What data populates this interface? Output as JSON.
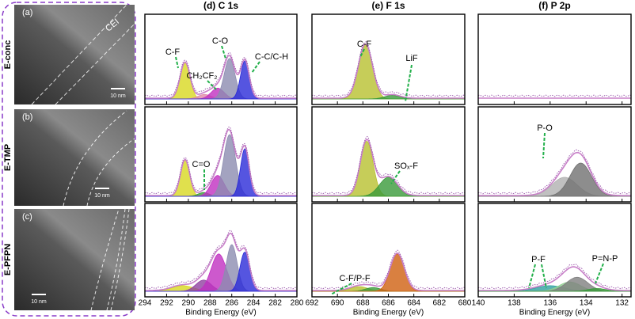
{
  "samples": [
    {
      "tag": "(a)",
      "name": "E-conc",
      "scale": "10 nm",
      "note": "CEI"
    },
    {
      "tag": "(b)",
      "name": "E-TMP",
      "scale": "10 nm"
    },
    {
      "tag": "(c)",
      "name": "E-PFPN",
      "scale": "10 nm"
    }
  ],
  "chart_data": [
    {
      "type": "line",
      "title": "(d) C 1s",
      "xlabel": "Binding Energy (eV)",
      "xlim": [
        294,
        280
      ],
      "xticks": [
        294,
        292,
        290,
        288,
        286,
        284,
        282,
        280
      ],
      "panels": [
        {
          "peaks": [
            {
              "color": "#d8d820",
              "center": 290.3,
              "height": 0.4,
              "width": 0.45
            },
            {
              "color": "#e08aa8",
              "center": 288.5,
              "height": 0.05,
              "width": 0.6
            },
            {
              "color": "#c030c0",
              "center": 287.3,
              "height": 0.12,
              "width": 0.6
            },
            {
              "color": "#8c8cb0",
              "center": 286.2,
              "height": 0.45,
              "width": 0.5
            },
            {
              "color": "#2a2ad8",
              "center": 284.8,
              "height": 0.42,
              "width": 0.4
            }
          ],
          "annotations": [
            "C-F",
            "CH₂CF₂",
            "C-O",
            "C-C/C-H"
          ]
        },
        {
          "peaks": [
            {
              "color": "#d8d820",
              "center": 290.3,
              "height": 0.38,
              "width": 0.42
            },
            {
              "color": "#3a9a3a",
              "center": 288.6,
              "height": 0.04,
              "width": 0.5
            },
            {
              "color": "#c030c0",
              "center": 287.3,
              "height": 0.22,
              "width": 0.6
            },
            {
              "color": "#8c8cb0",
              "center": 286.2,
              "height": 0.65,
              "width": 0.55
            },
            {
              "color": "#2a2ad8",
              "center": 284.8,
              "height": 0.5,
              "width": 0.4
            }
          ],
          "annotations": [
            "C=O"
          ]
        },
        {
          "peaks": [
            {
              "color": "#d8d820",
              "center": 290.5,
              "height": 0.06,
              "width": 1.0
            },
            {
              "color": "#9040a0",
              "center": 288.6,
              "height": 0.12,
              "width": 0.7
            },
            {
              "color": "#c030c0",
              "center": 287.2,
              "height": 0.4,
              "width": 0.7
            },
            {
              "color": "#8c8cb0",
              "center": 286.0,
              "height": 0.5,
              "width": 0.5
            },
            {
              "color": "#2a2ad8",
              "center": 284.8,
              "height": 0.42,
              "width": 0.45
            }
          ],
          "annotations": []
        }
      ]
    },
    {
      "type": "line",
      "title": "(e) F 1s",
      "xlabel": "Binding Energy (eV)",
      "xlim": [
        692,
        680
      ],
      "xticks": [
        692,
        690,
        688,
        686,
        684,
        682,
        680
      ],
      "panels": [
        {
          "peaks": [
            {
              "color": "#b8c030",
              "center": 687.8,
              "height": 0.6,
              "width": 0.55
            },
            {
              "color": "#3a9a3a",
              "center": 685.7,
              "height": 0.04,
              "width": 0.6
            }
          ],
          "annotations": [
            "C-F",
            "LiF"
          ]
        },
        {
          "peaks": [
            {
              "color": "#b8c030",
              "center": 687.7,
              "height": 0.58,
              "width": 0.5
            },
            {
              "color": "#3a9a3a",
              "center": 686.0,
              "height": 0.2,
              "width": 0.7
            }
          ],
          "annotations": [
            "SOₓ-F"
          ]
        },
        {
          "peaks": [
            {
              "color": "#b8c030",
              "center": 688.3,
              "height": 0.05,
              "width": 0.7
            },
            {
              "color": "#3a9a3a",
              "center": 687.2,
              "height": 0.04,
              "width": 0.6
            },
            {
              "color": "#d06010",
              "center": 685.3,
              "height": 0.4,
              "width": 0.55
            }
          ],
          "annotations": [
            "C-F/P-F"
          ]
        }
      ]
    },
    {
      "type": "line",
      "title": "(f) P 2p",
      "xlabel": "Binding Energy (eV)",
      "xlim": [
        140,
        131.5
      ],
      "xticks": [
        140,
        138,
        136,
        134,
        132
      ],
      "panels": [
        {
          "peaks": [],
          "annotations": []
        },
        {
          "peaks": [
            {
              "color": "#b0b0b0",
              "center": 135.2,
              "height": 0.2,
              "width": 0.7
            },
            {
              "color": "#707070",
              "center": 134.3,
              "height": 0.35,
              "width": 0.6
            }
          ],
          "annotations": [
            "P-O"
          ]
        },
        {
          "peaks": [
            {
              "color": "#30a0a0",
              "center": 136.0,
              "height": 0.06,
              "width": 0.8
            },
            {
              "color": "#90d090",
              "center": 134.9,
              "height": 0.1,
              "width": 0.6
            },
            {
              "color": "#808080",
              "center": 134.5,
              "height": 0.15,
              "width": 0.6
            },
            {
              "color": "#3a9a3a",
              "center": 133.4,
              "height": 0.03,
              "width": 0.5
            }
          ],
          "annotations": [
            "P-F",
            "P=N-P"
          ]
        }
      ]
    }
  ]
}
